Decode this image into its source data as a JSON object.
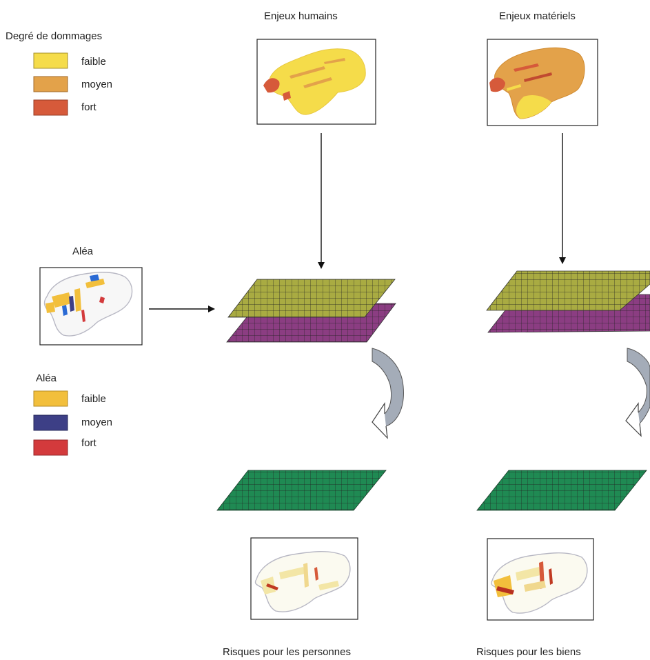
{
  "titles": {
    "enjeux_humains": "Enjeux humains",
    "enjeux_materiels": "Enjeux matériels",
    "alea_map": "Aléa",
    "risques_personnes": "Risques pour les personnes",
    "risques_biens": "Risques pour les biens"
  },
  "legend_dommages": {
    "title": "Degré de dommages",
    "items": [
      {
        "label": "faible",
        "color": "#f5dc4a"
      },
      {
        "label": "moyen",
        "color": "#e3a24a"
      },
      {
        "label": "fort",
        "color": "#d65a3a"
      }
    ]
  },
  "legend_alea": {
    "title": "Aléa",
    "items": [
      {
        "label": "faible",
        "color": "#f2bf3c"
      },
      {
        "label": "moyen",
        "color": "#3d3f86"
      },
      {
        "label": "fort",
        "color": "#d33a3c"
      }
    ]
  },
  "colors": {
    "layer_top": "#a9ab42",
    "layer_mid": "#8b3d82",
    "layer_result": "#1f8a53",
    "curved_arrow": "#a4acb8",
    "grid_line": "#2a2a2a"
  }
}
